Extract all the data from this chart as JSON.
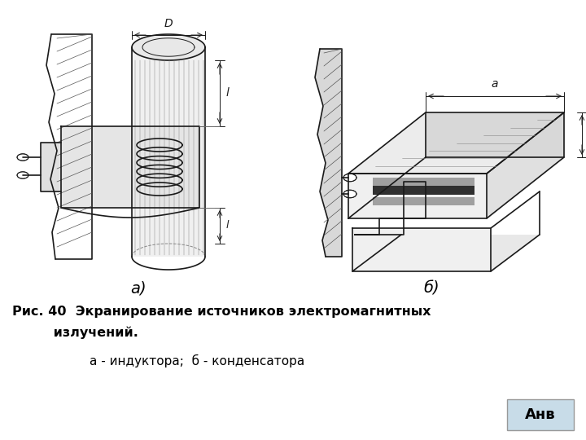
{
  "bg_color": "#ffffff",
  "fig_width": 7.2,
  "fig_height": 5.4,
  "dpi": 100,
  "title_line1_bold": "Рис. 40  Экранирование источников электромагнитных",
  "title_line2_bold": "         излучений.",
  "subtitle": "а - индуктора;  б - конденсатора",
  "label_a": "а)",
  "label_b": "б)",
  "anv_text": "Анв",
  "anv_box_color": "#c8dce8",
  "sketch_color": "#1a1a1a",
  "gray_light": "#d0d0d0",
  "gray_mid": "#b0b0b0",
  "gray_dark": "#606060"
}
